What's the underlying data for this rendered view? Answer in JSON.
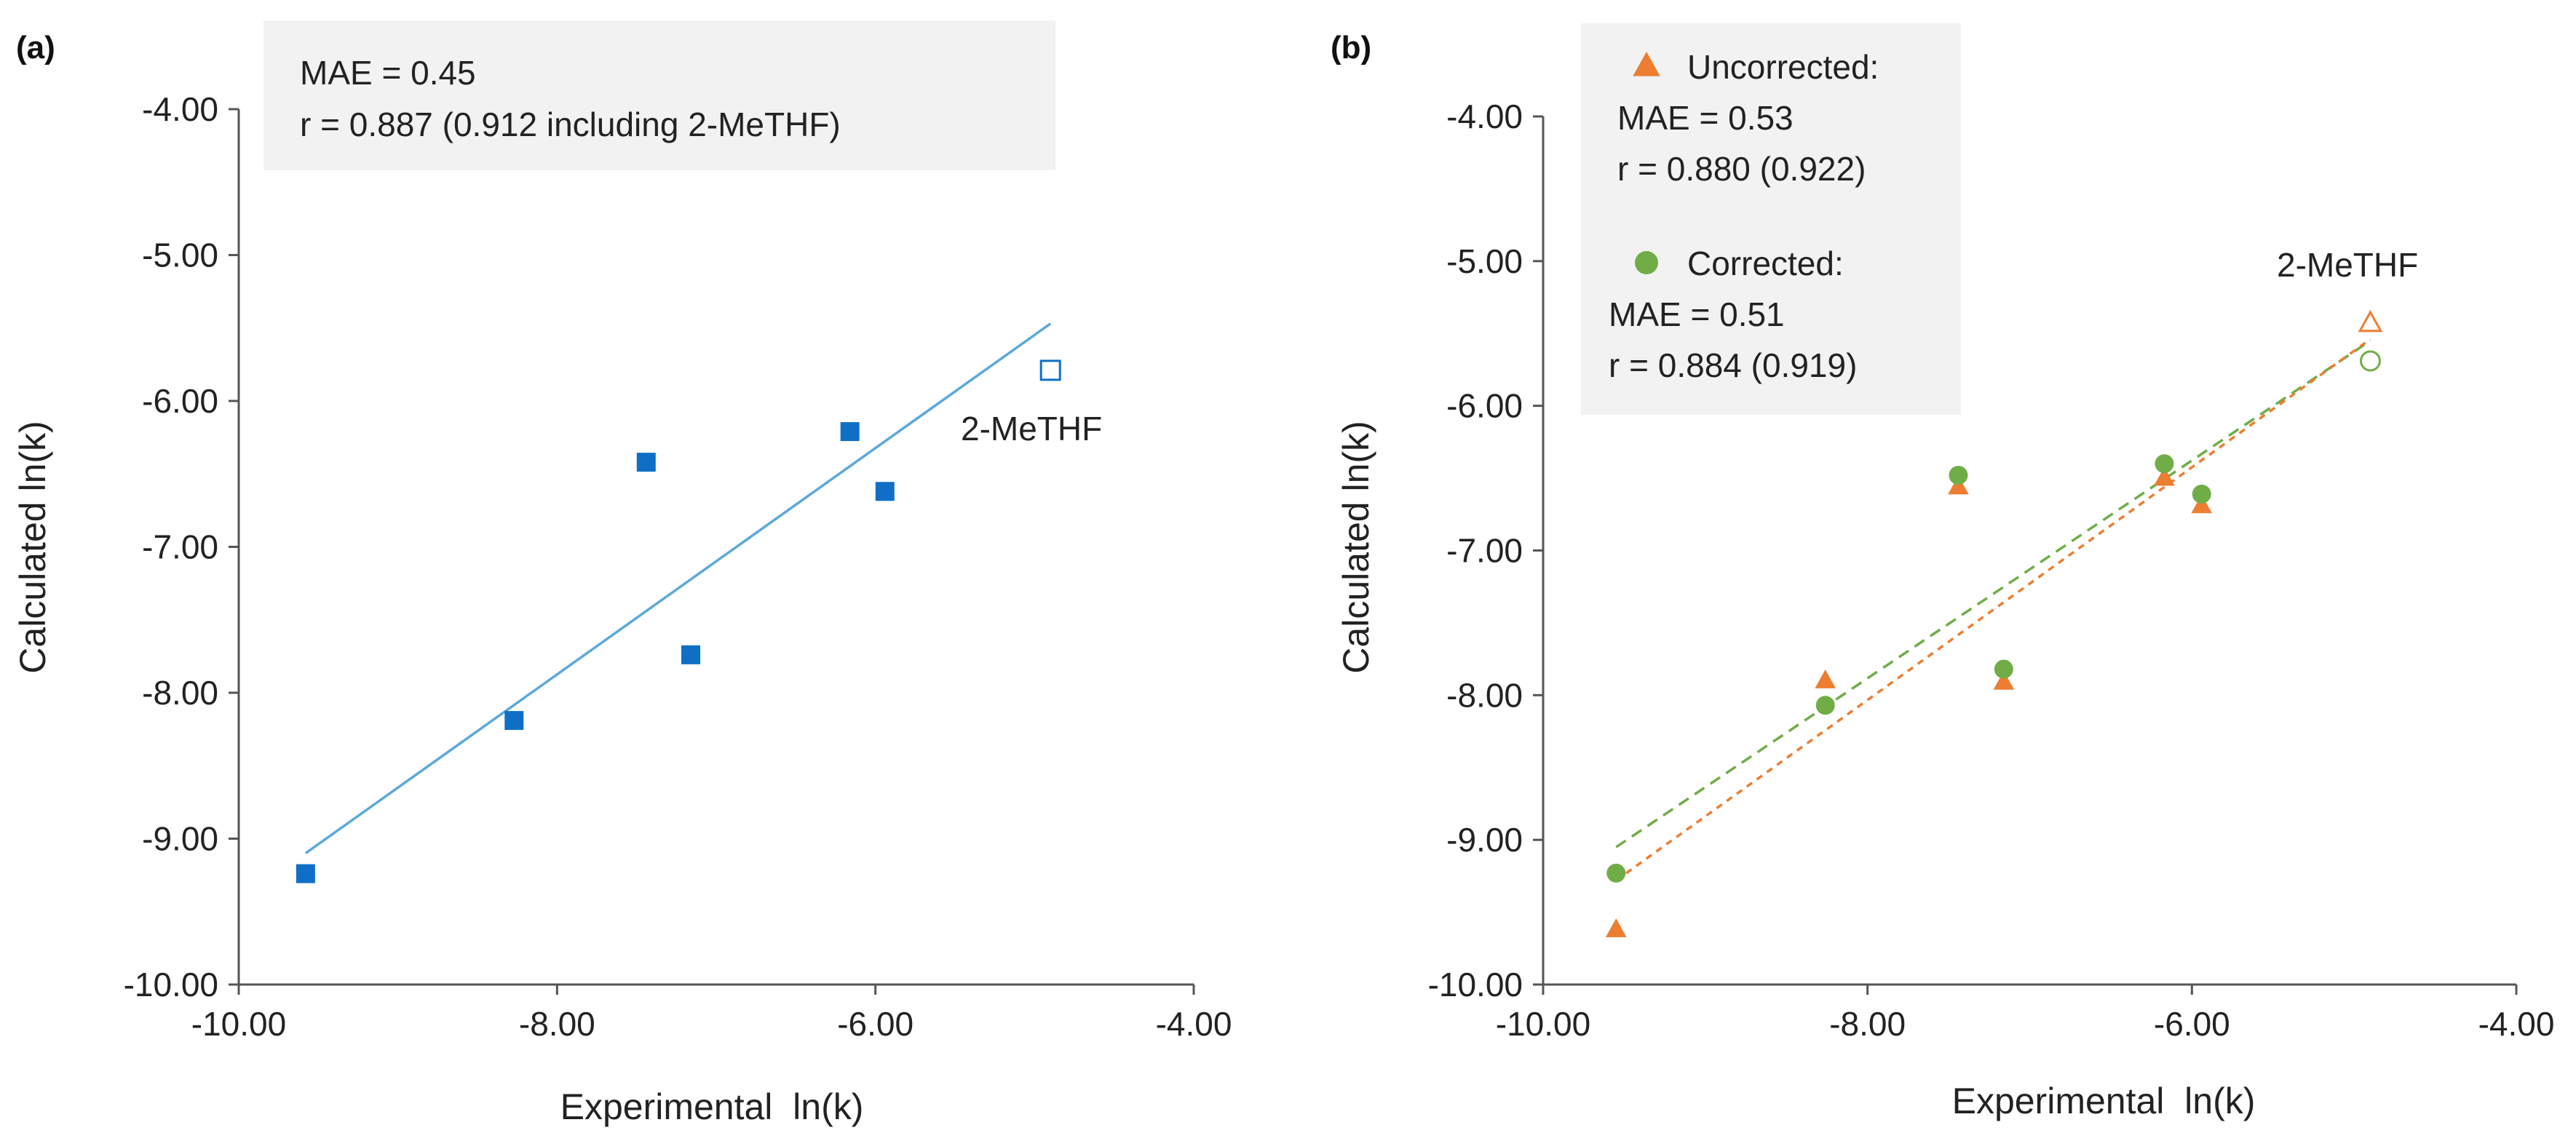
{
  "chart_data": [
    {
      "type": "scatter",
      "panel_label": "(a)",
      "xlabel": "Experimental  ln(k)",
      "ylabel": "Calculated ln(k)",
      "xlim": [
        -10.0,
        -4.0
      ],
      "ylim": [
        -10.0,
        -4.0
      ],
      "xticks": [
        -10.0,
        -8.0,
        -6.0,
        -4.0
      ],
      "yticks": [
        -10.0,
        -9.0,
        -8.0,
        -7.0,
        -6.0,
        -5.0,
        -4.0
      ],
      "xtick_labels": [
        "-10.00",
        "-8.00",
        "-6.00",
        "-4.00"
      ],
      "ytick_labels": [
        "-10.00",
        "-9.00",
        "-8.00",
        "-7.00",
        "-6.00",
        "-5.00",
        "-4.00"
      ],
      "grid": false,
      "stats_box": [
        "MAE = 0.45",
        "r = 0.887 (0.912 including 2-MeTHF)"
      ],
      "annotation": "2-MeTHF",
      "series": [
        {
          "marker": "square-filled",
          "color": "#0F6FC6",
          "points": [
            {
              "x": -9.58,
              "y": -9.24
            },
            {
              "x": -8.27,
              "y": -8.19
            },
            {
              "x": -7.44,
              "y": -6.42
            },
            {
              "x": -7.16,
              "y": -7.74
            },
            {
              "x": -6.16,
              "y": -6.21
            },
            {
              "x": -5.94,
              "y": -6.62
            }
          ]
        },
        {
          "marker": "square-open",
          "color": "#0F6FC6",
          "points": [
            {
              "x": -4.9,
              "y": -5.79
            }
          ]
        }
      ],
      "trendlines": [
        {
          "style": "solid",
          "color": "#5BA8DC",
          "x": [
            -9.58,
            -4.9
          ],
          "y": [
            -9.1,
            -5.47
          ]
        }
      ]
    },
    {
      "type": "scatter",
      "panel_label": "(b)",
      "xlabel": "Experimental  ln(k)",
      "ylabel": "Calculated ln(k)",
      "xlim": [
        -10.0,
        -4.0
      ],
      "ylim": [
        -10.0,
        -4.0
      ],
      "xticks": [
        -10.0,
        -8.0,
        -6.0,
        -4.0
      ],
      "yticks": [
        -10.0,
        -9.0,
        -8.0,
        -7.0,
        -6.0,
        -5.0,
        -4.0
      ],
      "xtick_labels": [
        "-10.00",
        "-8.00",
        "-6.00",
        "-4.00"
      ],
      "ytick_labels": [
        "-10.00",
        "-9.00",
        "-8.00",
        "-7.00",
        "-6.00",
        "-5.00",
        "-4.00"
      ],
      "grid": false,
      "legend": [
        {
          "marker": "triangle",
          "color": "#ED7D31",
          "label": "Uncorrected:",
          "lines": [
            "MAE = 0.53",
            "r = 0.880 (0.922)"
          ]
        },
        {
          "marker": "circle",
          "color": "#70AD47",
          "label": "Corrected:",
          "lines": [
            "MAE = 0.51",
            "r = 0.884 (0.919)"
          ]
        }
      ],
      "legend_position": "top-left",
      "annotation": "2-MeTHF",
      "series": [
        {
          "name": "Uncorrected:",
          "marker": "triangle-filled",
          "color": "#ED7D31",
          "points": [
            {
              "x": -9.55,
              "y": -9.62
            },
            {
              "x": -8.26,
              "y": -7.9
            },
            {
              "x": -7.44,
              "y": -6.56
            },
            {
              "x": -7.16,
              "y": -7.91
            },
            {
              "x": -6.17,
              "y": -6.5
            },
            {
              "x": -5.94,
              "y": -6.69
            }
          ]
        },
        {
          "name": "Uncorrected:",
          "marker": "triangle-open",
          "color": "#ED7D31",
          "points": [
            {
              "x": -4.9,
              "y": -5.43
            }
          ]
        },
        {
          "name": "Corrected:",
          "marker": "circle-filled",
          "color": "#70AD47",
          "points": [
            {
              "x": -9.55,
              "y": -9.23
            },
            {
              "x": -8.26,
              "y": -8.07
            },
            {
              "x": -7.44,
              "y": -6.48
            },
            {
              "x": -7.16,
              "y": -7.82
            },
            {
              "x": -6.17,
              "y": -6.4
            },
            {
              "x": -5.94,
              "y": -6.61
            }
          ]
        },
        {
          "name": "Corrected:",
          "marker": "circle-open",
          "color": "#70AD47",
          "points": [
            {
              "x": -4.9,
              "y": -5.69
            }
          ]
        }
      ],
      "trendlines": [
        {
          "style": "dashed",
          "color": "#70AD47",
          "x": [
            -9.55,
            -4.9
          ],
          "y": [
            -9.05,
            -5.55
          ]
        },
        {
          "style": "dashed",
          "color": "#ED7D31",
          "x": [
            -9.55,
            -4.9
          ],
          "y": [
            -9.28,
            -5.54
          ]
        }
      ]
    }
  ]
}
